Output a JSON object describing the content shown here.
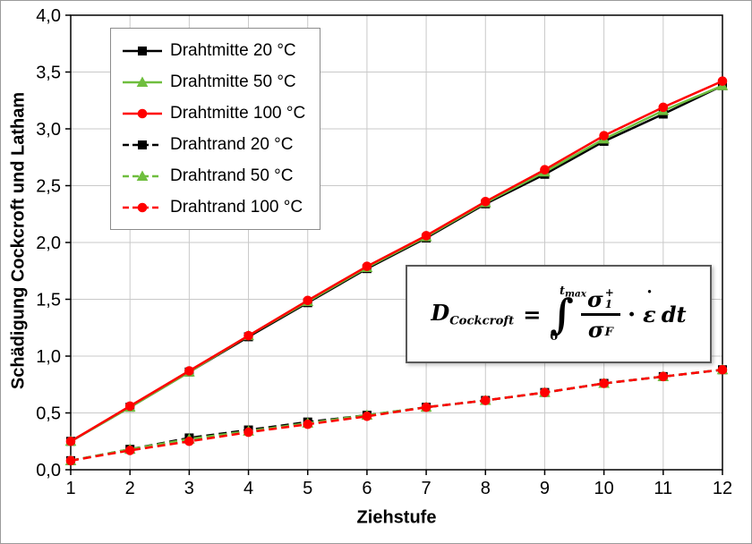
{
  "chart_data": {
    "type": "line",
    "title": "",
    "xlabel": "Ziehstufe",
    "ylabel": "Schädigung Cockcroft und Latham",
    "x": [
      1,
      2,
      3,
      4,
      5,
      6,
      7,
      8,
      9,
      10,
      11,
      12
    ],
    "xlim": [
      1,
      12
    ],
    "ylim": [
      0.0,
      4.0
    ],
    "ytick_step": 0.5,
    "decimal_comma": true,
    "grid": true,
    "grid_color": "#c9c9c9",
    "legend_position": "top-left",
    "series": [
      {
        "name": "Drahtmitte 20 °C",
        "color": "#000000",
        "line": "solid",
        "marker": "square",
        "values": [
          0.25,
          0.55,
          0.86,
          1.17,
          1.47,
          1.77,
          2.04,
          2.34,
          2.6,
          2.89,
          3.13,
          3.38
        ]
      },
      {
        "name": "Drahtmitte 50 °C",
        "color": "#6fbe3e",
        "line": "solid",
        "marker": "triangle",
        "values": [
          0.25,
          0.55,
          0.86,
          1.18,
          1.48,
          1.78,
          2.05,
          2.35,
          2.62,
          2.91,
          3.16,
          3.38
        ]
      },
      {
        "name": "Drahtmitte 100 °C",
        "color": "#ff0000",
        "line": "solid",
        "marker": "circle",
        "values": [
          0.25,
          0.56,
          0.87,
          1.18,
          1.49,
          1.79,
          2.06,
          2.36,
          2.64,
          2.94,
          3.19,
          3.42
        ]
      },
      {
        "name": "Drahtrand 20 °C",
        "color": "#000000",
        "line": "dashed",
        "marker": "square",
        "values": [
          0.08,
          0.18,
          0.28,
          0.35,
          0.42,
          0.48,
          0.55,
          0.61,
          0.68,
          0.76,
          0.82,
          0.88
        ]
      },
      {
        "name": "Drahtrand 50 °C",
        "color": "#6fbe3e",
        "line": "dashed",
        "marker": "triangle",
        "values": [
          0.08,
          0.18,
          0.27,
          0.34,
          0.41,
          0.48,
          0.55,
          0.61,
          0.68,
          0.76,
          0.82,
          0.88
        ]
      },
      {
        "name": "Drahtrand 100 °C",
        "color": "#ff0000",
        "line": "dashed",
        "marker": "circle",
        "values": [
          0.08,
          0.17,
          0.25,
          0.33,
          0.4,
          0.47,
          0.55,
          0.61,
          0.68,
          0.76,
          0.82,
          0.88
        ]
      }
    ]
  },
  "formula": {
    "lhs": "D",
    "lhs_sub": "Cockcroft",
    "equals": "=",
    "upper": "t",
    "upper_sub": "max",
    "integral": "∫",
    "lower": "0",
    "num": "σ",
    "num_sup": "+",
    "num_sub": "1",
    "den": "σ",
    "den_sub": "F",
    "cdot": "·",
    "strain_dot": "˙",
    "strain": "ε",
    "dt": "dt"
  }
}
